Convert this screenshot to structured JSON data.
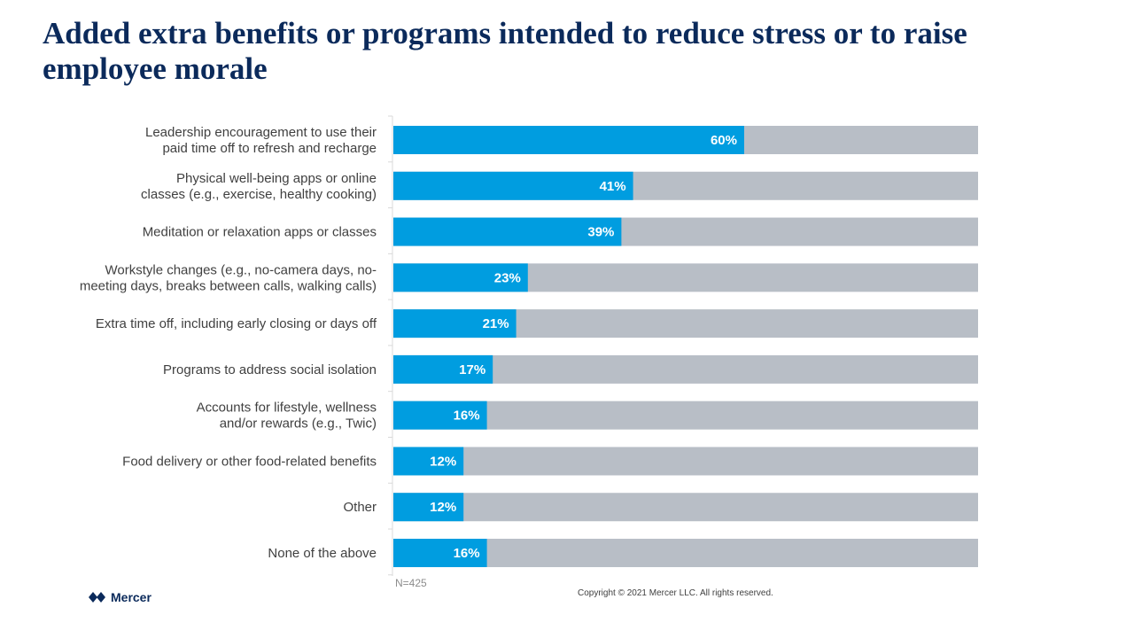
{
  "title": "Added extra benefits or programs intended to reduce stress or to raise employee morale",
  "note": "N=425",
  "copyright": "Copyright © 2021 Mercer LLC. All rights reserved.",
  "logo_text": "Mercer",
  "colors": {
    "bar": "#009de0",
    "track": "#b8bec6",
    "title": "#0b2a5b",
    "axis": "#d9d9d9"
  },
  "chart_data": {
    "type": "bar",
    "orientation": "horizontal",
    "categories": [
      [
        "Leadership encouragement to use their",
        "paid time off to refresh and recharge"
      ],
      [
        "Physical well-being apps or online",
        "classes (e.g., exercise, healthy cooking)"
      ],
      [
        "Meditation or relaxation apps or classes"
      ],
      [
        "Workstyle changes (e.g., no-camera days, no-",
        "meeting days, breaks between calls, walking calls)"
      ],
      [
        "Extra time off, including early closing or days off"
      ],
      [
        "Programs to address social isolation"
      ],
      [
        "Accounts for lifestyle, wellness",
        "and/or rewards (e.g., Twic)"
      ],
      [
        "Food delivery or other food-related benefits"
      ],
      [
        "Other"
      ],
      [
        "None of the above"
      ]
    ],
    "values": [
      60,
      41,
      39,
      23,
      21,
      17,
      16,
      12,
      12,
      16
    ],
    "value_labels": [
      "60%",
      "41%",
      "39%",
      "23%",
      "21%",
      "17%",
      "16%",
      "12%",
      "12%",
      "16%"
    ],
    "xlim": [
      0,
      100
    ],
    "grid": false,
    "legend": "none"
  }
}
